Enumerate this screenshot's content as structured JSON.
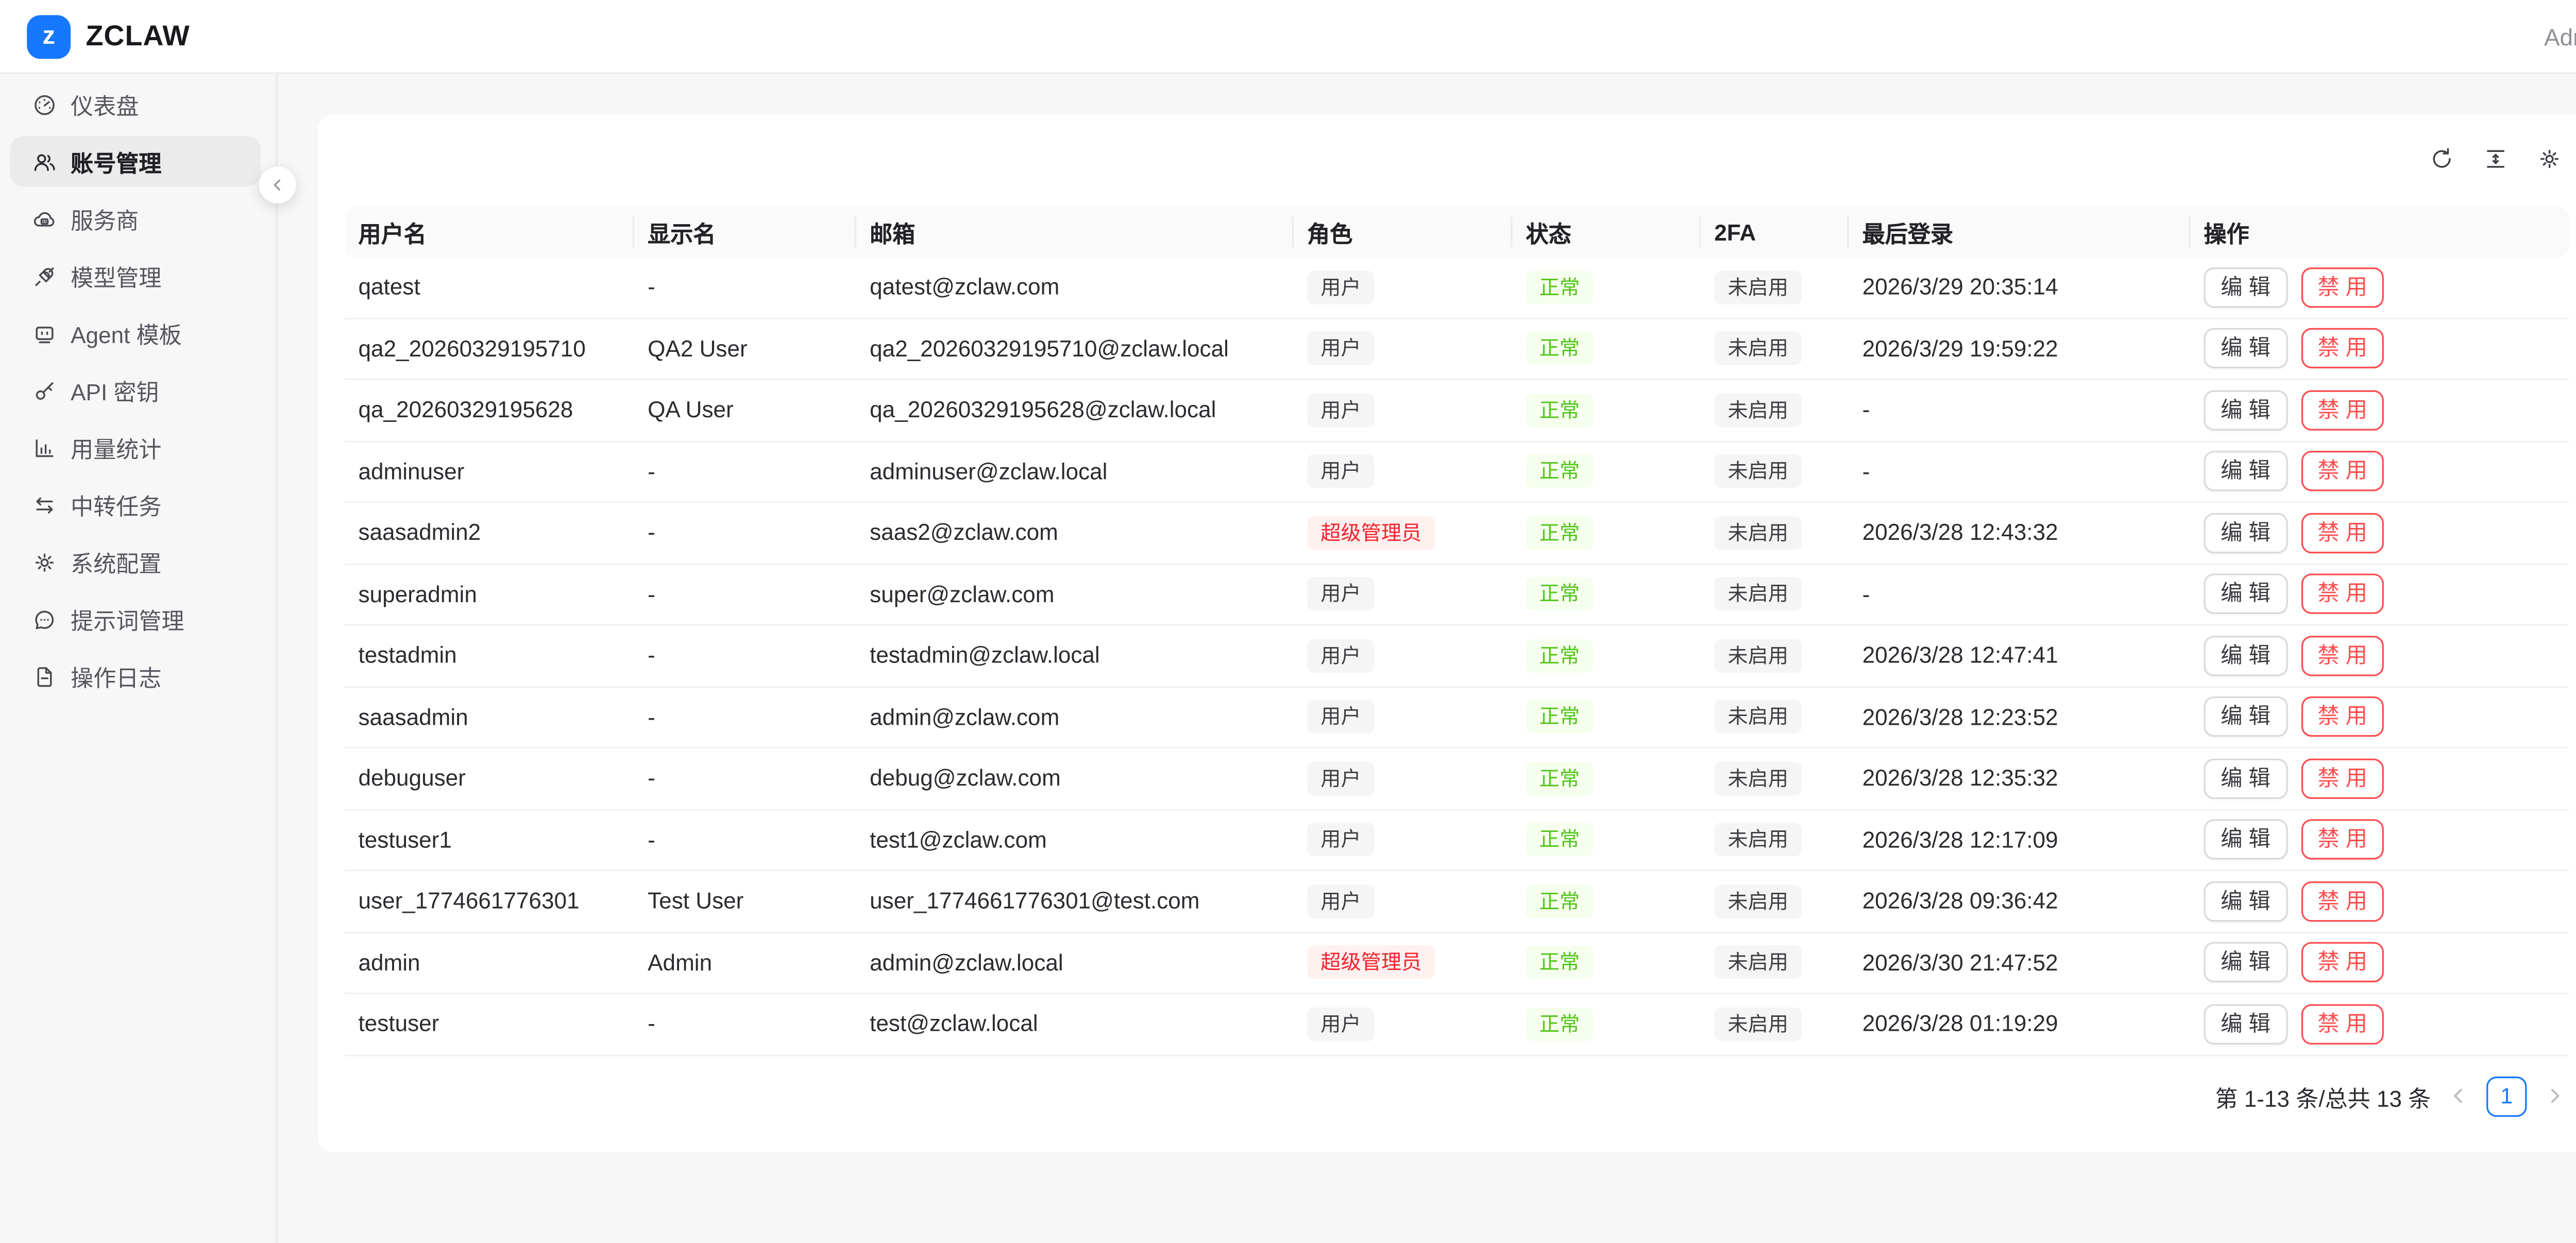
{
  "header": {
    "brand": "ZCLAW",
    "logo_letter": "z",
    "user_label": "Admin"
  },
  "sidebar": {
    "items": [
      {
        "label": "仪表盘",
        "icon": "dashboard-icon",
        "active": false
      },
      {
        "label": "账号管理",
        "icon": "team-icon",
        "active": true
      },
      {
        "label": "服务商",
        "icon": "cloud-server-icon",
        "active": false
      },
      {
        "label": "模型管理",
        "icon": "api-plug-icon",
        "active": false
      },
      {
        "label": "Agent 模板",
        "icon": "robot-icon",
        "active": false
      },
      {
        "label": "API 密钥",
        "icon": "key-icon",
        "active": false
      },
      {
        "label": "用量统计",
        "icon": "bar-chart-icon",
        "active": false
      },
      {
        "label": "中转任务",
        "icon": "swap-icon",
        "active": false
      },
      {
        "label": "系统配置",
        "icon": "gear-icon",
        "active": false
      },
      {
        "label": "提示词管理",
        "icon": "message-icon",
        "active": false
      },
      {
        "label": "操作日志",
        "icon": "file-icon",
        "active": false
      }
    ]
  },
  "toolbar": {
    "icons": [
      "refresh-icon",
      "column-height-icon",
      "settings-icon"
    ]
  },
  "table": {
    "columns": [
      "用户名",
      "显示名",
      "邮箱",
      "角色",
      "状态",
      "2FA",
      "最后登录",
      "操作"
    ],
    "action_labels": {
      "edit": "编 辑",
      "disable": "禁 用"
    },
    "rows": [
      {
        "username": "qatest",
        "display_name": "-",
        "email": "qatest@zclaw.com",
        "role": "用户",
        "role_type": "user",
        "status": "正常",
        "twofa": "未启用",
        "last_login": "2026/3/29 20:35:14"
      },
      {
        "username": "qa2_20260329195710",
        "display_name": "QA2 User",
        "email": "qa2_20260329195710@zclaw.local",
        "role": "用户",
        "role_type": "user",
        "status": "正常",
        "twofa": "未启用",
        "last_login": "2026/3/29 19:59:22"
      },
      {
        "username": "qa_20260329195628",
        "display_name": "QA User",
        "email": "qa_20260329195628@zclaw.local",
        "role": "用户",
        "role_type": "user",
        "status": "正常",
        "twofa": "未启用",
        "last_login": "-"
      },
      {
        "username": "adminuser",
        "display_name": "-",
        "email": "adminuser@zclaw.local",
        "role": "用户",
        "role_type": "user",
        "status": "正常",
        "twofa": "未启用",
        "last_login": "-"
      },
      {
        "username": "saasadmin2",
        "display_name": "-",
        "email": "saas2@zclaw.com",
        "role": "超级管理员",
        "role_type": "super",
        "status": "正常",
        "twofa": "未启用",
        "last_login": "2026/3/28 12:43:32"
      },
      {
        "username": "superadmin",
        "display_name": "-",
        "email": "super@zclaw.com",
        "role": "用户",
        "role_type": "user",
        "status": "正常",
        "twofa": "未启用",
        "last_login": "-"
      },
      {
        "username": "testadmin",
        "display_name": "-",
        "email": "testadmin@zclaw.local",
        "role": "用户",
        "role_type": "user",
        "status": "正常",
        "twofa": "未启用",
        "last_login": "2026/3/28 12:47:41"
      },
      {
        "username": "saasadmin",
        "display_name": "-",
        "email": "admin@zclaw.com",
        "role": "用户",
        "role_type": "user",
        "status": "正常",
        "twofa": "未启用",
        "last_login": "2026/3/28 12:23:52"
      },
      {
        "username": "debuguser",
        "display_name": "-",
        "email": "debug@zclaw.com",
        "role": "用户",
        "role_type": "user",
        "status": "正常",
        "twofa": "未启用",
        "last_login": "2026/3/28 12:35:32"
      },
      {
        "username": "testuser1",
        "display_name": "-",
        "email": "test1@zclaw.com",
        "role": "用户",
        "role_type": "user",
        "status": "正常",
        "twofa": "未启用",
        "last_login": "2026/3/28 12:17:09"
      },
      {
        "username": "user_1774661776301",
        "display_name": "Test User",
        "email": "user_1774661776301@test.com",
        "role": "用户",
        "role_type": "user",
        "status": "正常",
        "twofa": "未启用",
        "last_login": "2026/3/28 09:36:42"
      },
      {
        "username": "admin",
        "display_name": "Admin",
        "email": "admin@zclaw.local",
        "role": "超级管理员",
        "role_type": "super",
        "status": "正常",
        "twofa": "未启用",
        "last_login": "2026/3/30 21:47:52"
      },
      {
        "username": "testuser",
        "display_name": "-",
        "email": "test@zclaw.local",
        "role": "用户",
        "role_type": "user",
        "status": "正常",
        "twofa": "未启用",
        "last_login": "2026/3/28 01:19:29"
      }
    ]
  },
  "pagination": {
    "summary": "第 1-13 条/总共 13 条",
    "current_page": "1"
  },
  "colors": {
    "brand_blue": "#1677ff",
    "green_text": "#52c41a",
    "green_bg": "#f6ffed",
    "red_text": "#f5222d",
    "red_bg": "#fff1f0",
    "badge_gray_bg": "#f5f5f5"
  }
}
